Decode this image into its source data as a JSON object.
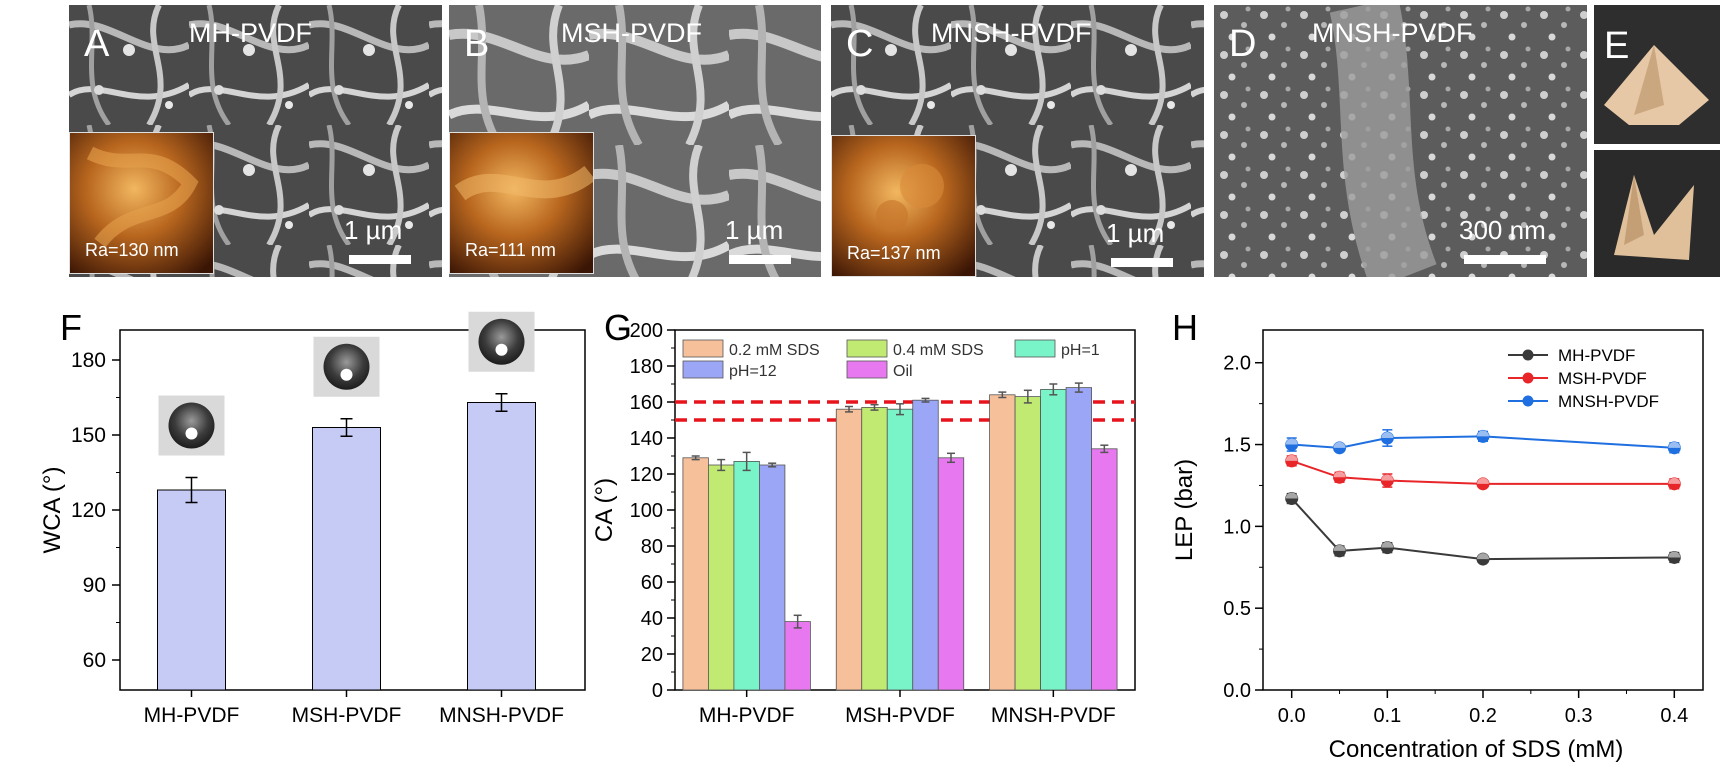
{
  "sem_panels": [
    {
      "letter": "A",
      "title": "MH-PVDF",
      "scale": "1 µm",
      "afm": "Ra=130 nm"
    },
    {
      "letter": "B",
      "title": "MSH-PVDF",
      "scale": "1 µm",
      "afm": "Ra=111 nm"
    },
    {
      "letter": "C",
      "title": "MNSH-PVDF",
      "scale": "1 µm",
      "afm": "Ra=137 nm"
    },
    {
      "letter": "D",
      "title": "MNSH-PVDF",
      "scale": "300 nm",
      "afm": ""
    },
    {
      "letter": "E",
      "title": "",
      "scale": "",
      "afm": ""
    }
  ],
  "chart_data": [
    {
      "panel": "F",
      "type": "bar",
      "categories": [
        "MH-PVDF",
        "MSH-PVDF",
        "MNSH-PVDF"
      ],
      "values": [
        128,
        153,
        163
      ],
      "errors": [
        5,
        3.5,
        3.5
      ],
      "xlabel": "",
      "ylabel": "WCA (°)",
      "ylim": [
        48,
        192
      ],
      "yticks": [
        60,
        90,
        120,
        150,
        180
      ],
      "bar_color": "#c6cbf6",
      "has_droplet_images": true,
      "grid": false
    },
    {
      "panel": "G",
      "type": "bar",
      "categories": [
        "MH-PVDF",
        "MSH-PVDF",
        "MNSH-PVDF"
      ],
      "series": [
        {
          "name": "0.2 mM SDS",
          "values": [
            129,
            156,
            164
          ],
          "errors": [
            1,
            1.5,
            1.5
          ],
          "color": "#f6c09b"
        },
        {
          "name": "0.4 mM SDS",
          "values": [
            125,
            157,
            163
          ],
          "errors": [
            3,
            1.5,
            3.5
          ],
          "color": "#c1ea72"
        },
        {
          "name": "pH=1",
          "values": [
            127,
            156,
            167
          ],
          "errors": [
            5,
            3,
            3
          ],
          "color": "#79f4c8"
        },
        {
          "name": "pH=12",
          "values": [
            125,
            161,
            168
          ],
          "errors": [
            1,
            1,
            2.5
          ],
          "color": "#9ca6f6"
        },
        {
          "name": "Oil",
          "values": [
            38,
            129,
            134
          ],
          "errors": [
            3.5,
            2.5,
            2
          ],
          "color": "#e878f0"
        }
      ],
      "reference_lines": [
        150,
        160
      ],
      "reference_color": "#e8141d",
      "xlabel": "",
      "ylabel": "CA (°)",
      "ylim": [
        0,
        200
      ],
      "yticks": [
        0,
        20,
        40,
        60,
        80,
        100,
        120,
        140,
        160,
        180,
        200
      ],
      "legend": "top",
      "grid": false
    },
    {
      "panel": "H",
      "type": "line",
      "x": [
        0.0,
        0.05,
        0.1,
        0.2,
        0.4
      ],
      "series": [
        {
          "name": "MH-PVDF",
          "values": [
            1.17,
            0.85,
            0.87,
            0.8,
            0.81
          ],
          "errors": [
            0.03,
            0.03,
            0.03,
            0.02,
            0.03
          ],
          "color": "#3a3a3a"
        },
        {
          "name": "MSH-PVDF",
          "values": [
            1.4,
            1.3,
            1.28,
            1.26,
            1.26
          ],
          "errors": [
            0.03,
            0.03,
            0.04,
            0.02,
            0.03
          ],
          "color": "#e8262a"
        },
        {
          "name": "MNSH-PVDF",
          "values": [
            1.5,
            1.48,
            1.54,
            1.55,
            1.48
          ],
          "errors": [
            0.04,
            0.02,
            0.05,
            0.03,
            0.03
          ],
          "color": "#1f6fe0"
        }
      ],
      "xlabel": "Concentration of SDS (mM)",
      "ylabel": "LEP (bar)",
      "xlim": [
        -0.03,
        0.43
      ],
      "ylim": [
        0,
        2.2
      ],
      "xticks": [
        "0.0",
        "0.1",
        "0.2",
        "0.3",
        "0.4"
      ],
      "yticks": [
        "0.0",
        "0.5",
        "1.0",
        "1.5",
        "2.0"
      ],
      "legend": "top-right",
      "grid": false
    }
  ]
}
